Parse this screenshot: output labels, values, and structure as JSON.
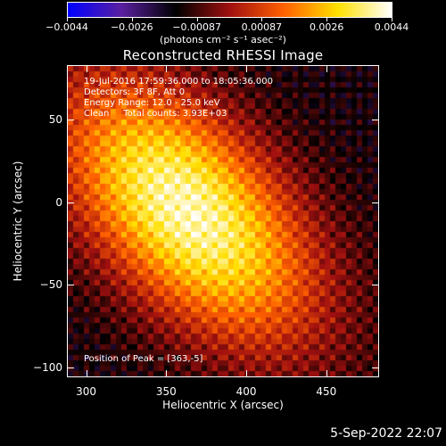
{
  "colorbar": {
    "labels": [
      "−0.0044",
      "−0.0026",
      "−0.00087",
      "0.00087",
      "0.0026",
      "0.0044"
    ],
    "units": "(photons cm⁻² s⁻¹ asec⁻²)",
    "colormap": [
      "#0000ff",
      "#5a20a0",
      "#000000",
      "#a01010",
      "#ff6000",
      "#ffe000",
      "#ffffff"
    ]
  },
  "plot": {
    "title": "Reconstructed RHESSI Image",
    "xlabel": "Heliocentric X (arcsec)",
    "ylabel": "Heliocentric Y (arcsec)",
    "xticks": [
      "300",
      "350",
      "400",
      "450"
    ],
    "yticks": [
      "50",
      "0",
      "−50",
      "−100"
    ],
    "xlim": [
      288,
      483
    ],
    "ylim": [
      -106,
      83
    ]
  },
  "info": {
    "line1": "19-Jul-2016 17:59:36.000 to 18:05:36.000",
    "line2": "Detectors: 3F 8F, Att 0",
    "line3": "Energy Range: 12.0 - 25.0 keV",
    "line4": "Clean     Total counts: 3.93E+03",
    "peak": "Position of Peak = [363,-5]"
  },
  "peak": [
    363,
    -5
  ],
  "timestamp": "5-Sep-2022 22:07"
}
